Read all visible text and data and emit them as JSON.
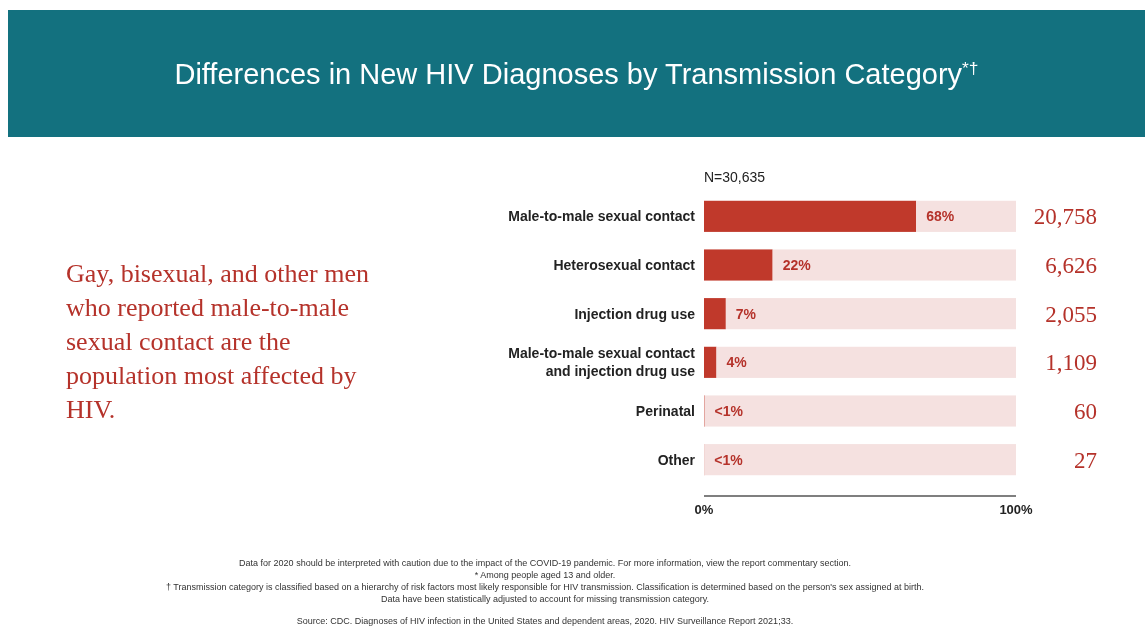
{
  "chart_data": {
    "type": "bar",
    "orientation": "horizontal",
    "stacked": true,
    "title": "Differences in New HIV Diagnoses by Transmission Category$^{*†}$",
    "subtitle": "N=30,635",
    "categories": [
      "Male-to-male sexual contact",
      "Heterosexual contact",
      "Injection drug use",
      "Male-to-male sexual contact and injection drug use",
      "Perinatal",
      "Other"
    ],
    "series": [
      {
        "color": "#c0392b",
        "values": [
          68,
          22,
          7,
          4,
          0.2,
          0.1
        ],
        "value_labels": [
          "68%",
          "22%",
          "7%",
          "4%",
          "<1%",
          "<1%"
        ]
      },
      {
        "color": "#f5e1e0",
        "values": [
          32,
          78,
          93,
          96,
          99.8,
          99.9
        ]
      }
    ],
    "xlim": [
      0,
      100
    ],
    "xticks": [
      {
        "value": 0,
        "label": "0%"
      },
      {
        "value": 100,
        "label": "100%"
      }
    ],
    "grid": false,
    "annotations": [
      "Gay, bisexual, and other men who reported male-to-male sexual contact are the population most affected by HIV.",
      "Data for 2020 should be interpreted with caution due to the impact of the COVID-19 pandemic. For more information, view the report commentary section.",
      "* Among people aged 13 and older.",
      "† Transmission category is classified based on a hierarchy of risk factors most likely responsible for HIV transmission. Classification is determined based on the person's sex assigned at birth.",
      "Data have been statistically adjusted to account for missing transmission category.",
      "Source: CDC. Diagnoses of HIV infection in the United States and dependent areas, 2020. HIV Surveillance Report 2021;33.",
      "20,758",
      "6,626",
      "2,055",
      "1,109",
      "60",
      "27"
    ]
  }
}
